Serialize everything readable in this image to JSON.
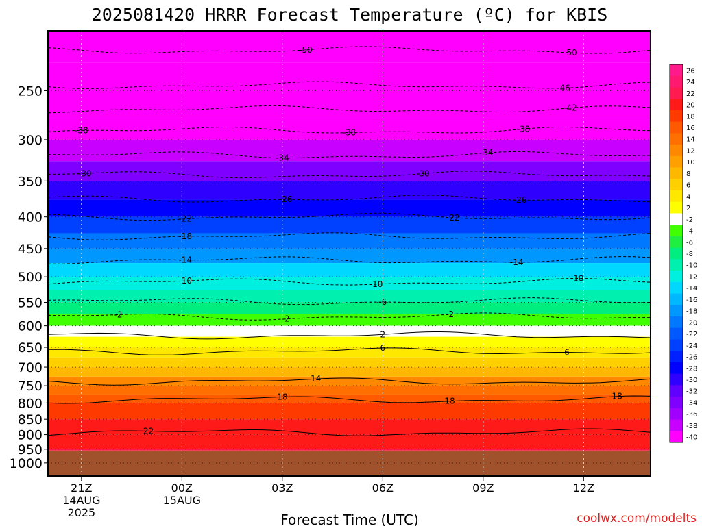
{
  "chart_data": {
    "type": "heatmap",
    "title": "2025081420 HRRR Forecast Temperature (ºC) for KBIS",
    "xlabel": "Forecast Time (UTC)",
    "ylabel": "",
    "credit": "coolwx.com/modelts",
    "x_ticks": [
      {
        "label": "21Z",
        "sub": [
          "14AUG",
          "2025"
        ],
        "hour": 0
      },
      {
        "label": "00Z",
        "sub": [
          "15AUG"
        ],
        "hour": 3
      },
      {
        "label": "03Z",
        "sub": [],
        "hour": 6
      },
      {
        "label": "06Z",
        "sub": [],
        "hour": 9
      },
      {
        "label": "09Z",
        "sub": [],
        "hour": 12
      },
      {
        "label": "12Z",
        "sub": [],
        "hour": 15
      }
    ],
    "xlim": [
      -1,
      17
    ],
    "y_ticks": [
      250,
      300,
      350,
      400,
      450,
      500,
      550,
      600,
      650,
      700,
      750,
      800,
      850,
      900,
      950,
      1000
    ],
    "ylim": [
      200,
      1050
    ],
    "y_scale": "log (pressure, hPa, increasing downward)",
    "colorbar": {
      "labels": [
        "26",
        "24",
        "22",
        "20",
        "18",
        "16",
        "14",
        "12",
        "10",
        "8",
        "6",
        "4",
        "2",
        "-2",
        "-4",
        "-6",
        "-8",
        "-10",
        "-12",
        "-14",
        "-16",
        "-18",
        "-20",
        "-22",
        "-24",
        "-26",
        "-28",
        "-30",
        "-32",
        "-34",
        "-36",
        "-38",
        "-40"
      ],
      "colors": [
        "#ff1a8c",
        "#ff1a70",
        "#ff1a50",
        "#ff1a1a",
        "#ff3a00",
        "#ff5a00",
        "#ff7000",
        "#ff8800",
        "#ffa000",
        "#ffb800",
        "#ffd000",
        "#ffe800",
        "#ffff00",
        "#ffffff",
        "#40ff00",
        "#20ee40",
        "#00ee80",
        "#00f0b0",
        "#00f0e0",
        "#00d8ff",
        "#00b8ff",
        "#0098ff",
        "#0078ff",
        "#0058ff",
        "#0040ff",
        "#0020ff",
        "#0000ff",
        "#3000ff",
        "#6000ff",
        "#8000ff",
        "#a000ff",
        "#c800ff",
        "#ff00ff"
      ]
    },
    "temperature_levels": [
      {
        "p": 200,
        "t": -55
      },
      {
        "p": 225,
        "t": -52
      },
      {
        "p": 250,
        "t": -46
      },
      {
        "p": 275,
        "t": -41
      },
      {
        "p": 300,
        "t": -37
      },
      {
        "p": 325,
        "t": -33
      },
      {
        "p": 350,
        "t": -29
      },
      {
        "p": 375,
        "t": -26
      },
      {
        "p": 400,
        "t": -22
      },
      {
        "p": 425,
        "t": -19
      },
      {
        "p": 450,
        "t": -16
      },
      {
        "p": 475,
        "t": -13.5
      },
      {
        "p": 500,
        "t": -11
      },
      {
        "p": 525,
        "t": -8.5
      },
      {
        "p": 550,
        "t": -6
      },
      {
        "p": 575,
        "t": -3.5
      },
      {
        "p": 600,
        "t": -0.5
      },
      {
        "p": 625,
        "t": 2.5
      },
      {
        "p": 650,
        "t": 5
      },
      {
        "p": 675,
        "t": 7.5
      },
      {
        "p": 700,
        "t": 9.5
      },
      {
        "p": 725,
        "t": 12
      },
      {
        "p": 750,
        "t": 14.5
      },
      {
        "p": 775,
        "t": 17
      },
      {
        "p": 800,
        "t": 19
      },
      {
        "p": 850,
        "t": 20.5
      },
      {
        "p": 900,
        "t": 21.5
      },
      {
        "p": 950,
        "t": 22.5
      }
    ],
    "surface_pressure": 955,
    "ground_color": "#a0522d",
    "contours": [
      {
        "label": "-50",
        "p": 215,
        "style": "dashed",
        "label_hours": [
          6.7,
          14.6
        ]
      },
      {
        "label": "-46",
        "p": 245,
        "style": "dashed",
        "label_hours": [
          14.4
        ]
      },
      {
        "label": "-42",
        "p": 268,
        "style": "dashed",
        "label_hours": [
          14.6
        ]
      },
      {
        "label": "-38",
        "p": 290,
        "style": "dashed",
        "label_hours": [
          0.0,
          8.0,
          13.2
        ]
      },
      {
        "label": "-34",
        "p": 318,
        "style": "dashed",
        "label_hours": [
          6.0,
          12.1
        ]
      },
      {
        "label": "-30",
        "p": 342,
        "style": "dashed",
        "label_hours": [
          0.1,
          10.2
        ]
      },
      {
        "label": "-26",
        "p": 374,
        "style": "dashed",
        "label_hours": [
          6.1,
          13.1
        ]
      },
      {
        "label": "-22",
        "p": 400,
        "style": "dashed",
        "label_hours": [
          3.1,
          11.1
        ]
      },
      {
        "label": "-18",
        "p": 430,
        "style": "dashed",
        "label_hours": [
          3.1
        ]
      },
      {
        "label": "-14",
        "p": 470,
        "style": "dashed",
        "label_hours": [
          3.1,
          13.0
        ]
      },
      {
        "label": "-10",
        "p": 510,
        "style": "dashed",
        "label_hours": [
          3.1,
          8.8,
          14.8
        ]
      },
      {
        "label": "-6",
        "p": 548,
        "style": "dashed",
        "label_hours": [
          9.0
        ]
      },
      {
        "label": "-2",
        "p": 580,
        "style": "dashed",
        "label_hours": [
          1.1,
          6.1,
          11.0
        ]
      },
      {
        "label": "2",
        "p": 622,
        "style": "solid",
        "label_hours": [
          9.0
        ]
      },
      {
        "label": "6",
        "p": 660,
        "style": "solid",
        "label_hours": [
          9.0,
          14.5
        ]
      },
      {
        "label": "14",
        "p": 738,
        "style": "solid",
        "label_hours": [
          7.0
        ]
      },
      {
        "label": "18",
        "p": 790,
        "style": "solid",
        "label_hours": [
          6.0,
          11.0,
          16.0
        ]
      },
      {
        "label": "22",
        "p": 893,
        "style": "solid",
        "label_hours": [
          2.0
        ]
      }
    ]
  }
}
